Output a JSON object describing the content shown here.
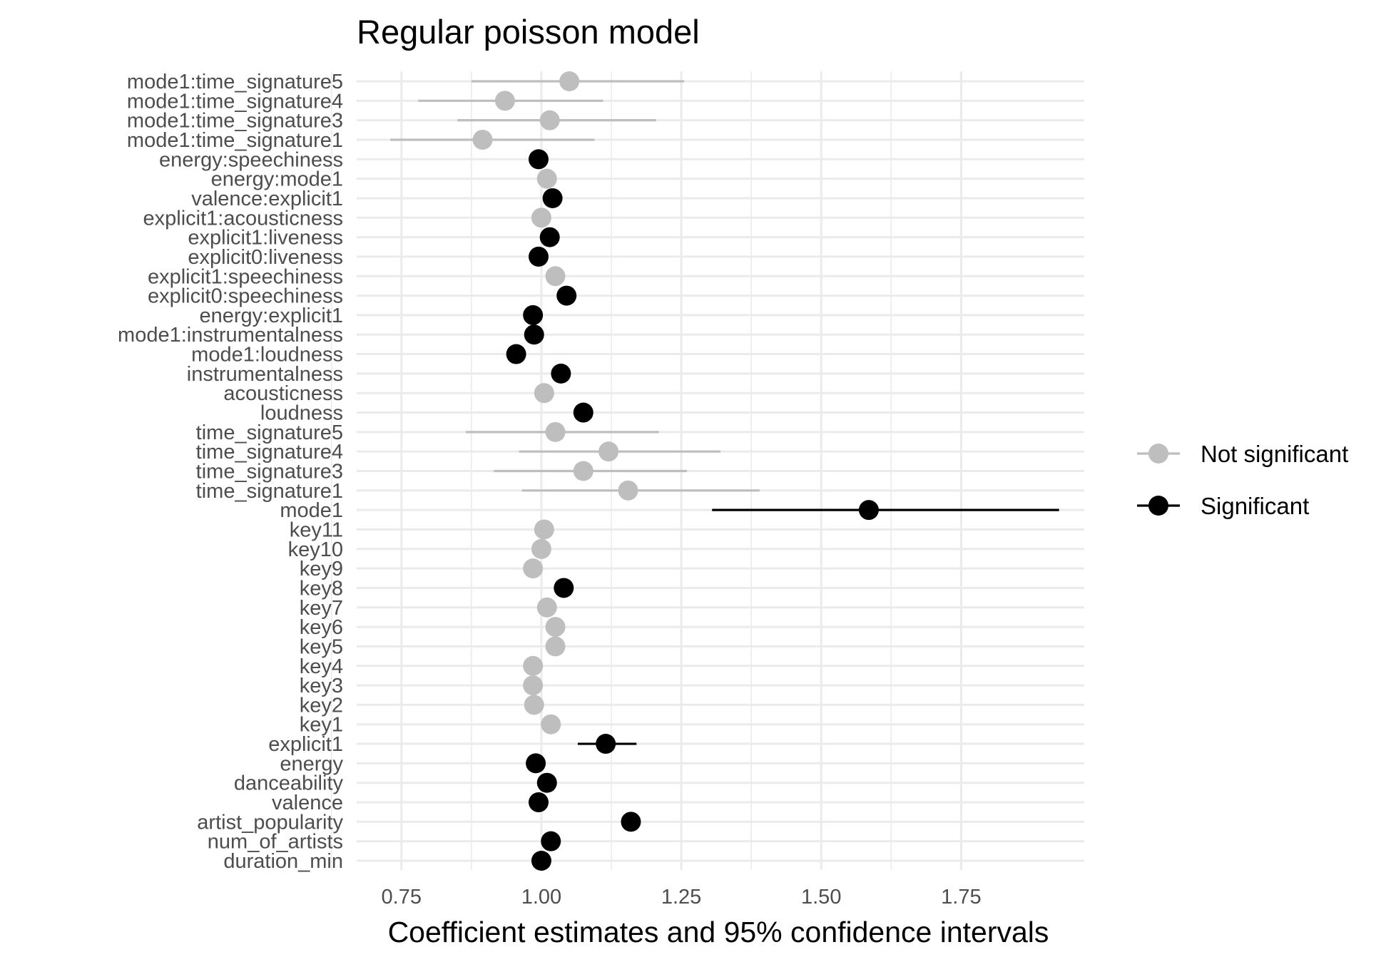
{
  "chart_data": {
    "type": "scatter",
    "subtype": "coefficient-dot-with-error-bars",
    "title": "Regular poisson model",
    "xlabel": "Coefficient estimates and 95% confidence intervals",
    "ylabel": "",
    "xlim": [
      0.67,
      1.97
    ],
    "x_ticks": [
      0.75,
      1.0,
      1.25,
      1.5,
      1.75
    ],
    "x_tick_labels": [
      "0.75",
      "1.00",
      "1.25",
      "1.50",
      "1.75"
    ],
    "grid": true,
    "legend_position": "right",
    "colors": {
      "Not significant": "#bebebe",
      "Significant": "#000000",
      "grid": "#ebebeb"
    },
    "legend": [
      "Not significant",
      "Significant"
    ],
    "terms": [
      {
        "term": "mode1:time_signature5",
        "estimate": 1.05,
        "low": 0.875,
        "high": 1.255,
        "group": "Not significant"
      },
      {
        "term": "mode1:time_signature4",
        "estimate": 0.935,
        "low": 0.78,
        "high": 1.11,
        "group": "Not significant"
      },
      {
        "term": "mode1:time_signature3",
        "estimate": 1.015,
        "low": 0.85,
        "high": 1.205,
        "group": "Not significant"
      },
      {
        "term": "mode1:time_signature1",
        "estimate": 0.895,
        "low": 0.73,
        "high": 1.095,
        "group": "Not significant"
      },
      {
        "term": "energy:speechiness",
        "estimate": 0.995,
        "low": null,
        "high": null,
        "group": "Significant"
      },
      {
        "term": "energy:mode1",
        "estimate": 1.01,
        "low": null,
        "high": null,
        "group": "Not significant"
      },
      {
        "term": "valence:explicit1",
        "estimate": 1.02,
        "low": null,
        "high": null,
        "group": "Significant"
      },
      {
        "term": "explicit1:acousticness",
        "estimate": 1.0,
        "low": null,
        "high": null,
        "group": "Not significant"
      },
      {
        "term": "explicit1:liveness",
        "estimate": 1.015,
        "low": null,
        "high": null,
        "group": "Significant"
      },
      {
        "term": "explicit0:liveness",
        "estimate": 0.995,
        "low": null,
        "high": null,
        "group": "Significant"
      },
      {
        "term": "explicit1:speechiness",
        "estimate": 1.025,
        "low": null,
        "high": null,
        "group": "Not significant"
      },
      {
        "term": "explicit0:speechiness",
        "estimate": 1.045,
        "low": null,
        "high": null,
        "group": "Significant"
      },
      {
        "term": "energy:explicit1",
        "estimate": 0.985,
        "low": null,
        "high": null,
        "group": "Significant"
      },
      {
        "term": "mode1:instrumentalness",
        "estimate": 0.987,
        "low": null,
        "high": null,
        "group": "Significant"
      },
      {
        "term": "mode1:loudness",
        "estimate": 0.955,
        "low": null,
        "high": null,
        "group": "Significant"
      },
      {
        "term": "instrumentalness",
        "estimate": 1.035,
        "low": null,
        "high": null,
        "group": "Significant"
      },
      {
        "term": "acousticness",
        "estimate": 1.005,
        "low": null,
        "high": null,
        "group": "Not significant"
      },
      {
        "term": "loudness",
        "estimate": 1.075,
        "low": null,
        "high": null,
        "group": "Significant"
      },
      {
        "term": "time_signature5",
        "estimate": 1.025,
        "low": 0.865,
        "high": 1.21,
        "group": "Not significant"
      },
      {
        "term": "time_signature4",
        "estimate": 1.12,
        "low": 0.96,
        "high": 1.32,
        "group": "Not significant"
      },
      {
        "term": "time_signature3",
        "estimate": 1.075,
        "low": 0.915,
        "high": 1.26,
        "group": "Not significant"
      },
      {
        "term": "time_signature1",
        "estimate": 1.155,
        "low": 0.965,
        "high": 1.39,
        "group": "Not significant"
      },
      {
        "term": "mode1",
        "estimate": 1.585,
        "low": 1.305,
        "high": 1.925,
        "group": "Significant"
      },
      {
        "term": "key11",
        "estimate": 1.005,
        "low": null,
        "high": null,
        "group": "Not significant"
      },
      {
        "term": "key10",
        "estimate": 1.0,
        "low": null,
        "high": null,
        "group": "Not significant"
      },
      {
        "term": "key9",
        "estimate": 0.985,
        "low": null,
        "high": null,
        "group": "Not significant"
      },
      {
        "term": "key8",
        "estimate": 1.04,
        "low": null,
        "high": null,
        "group": "Significant"
      },
      {
        "term": "key7",
        "estimate": 1.01,
        "low": null,
        "high": null,
        "group": "Not significant"
      },
      {
        "term": "key6",
        "estimate": 1.025,
        "low": null,
        "high": null,
        "group": "Not significant"
      },
      {
        "term": "key5",
        "estimate": 1.025,
        "low": null,
        "high": null,
        "group": "Not significant"
      },
      {
        "term": "key4",
        "estimate": 0.985,
        "low": null,
        "high": null,
        "group": "Not significant"
      },
      {
        "term": "key3",
        "estimate": 0.985,
        "low": null,
        "high": null,
        "group": "Not significant"
      },
      {
        "term": "key2",
        "estimate": 0.987,
        "low": null,
        "high": null,
        "group": "Not significant"
      },
      {
        "term": "key1",
        "estimate": 1.017,
        "low": null,
        "high": null,
        "group": "Not significant"
      },
      {
        "term": "explicit1",
        "estimate": 1.115,
        "low": 1.065,
        "high": 1.17,
        "group": "Significant"
      },
      {
        "term": "energy",
        "estimate": 0.99,
        "low": null,
        "high": null,
        "group": "Significant"
      },
      {
        "term": "danceability",
        "estimate": 1.01,
        "low": null,
        "high": null,
        "group": "Significant"
      },
      {
        "term": "valence",
        "estimate": 0.995,
        "low": null,
        "high": null,
        "group": "Significant"
      },
      {
        "term": "artist_popularity",
        "estimate": 1.16,
        "low": null,
        "high": null,
        "group": "Significant"
      },
      {
        "term": "num_of_artists",
        "estimate": 1.017,
        "low": null,
        "high": null,
        "group": "Significant"
      },
      {
        "term": "duration_min",
        "estimate": 1.0,
        "low": null,
        "high": null,
        "group": "Significant"
      }
    ]
  }
}
